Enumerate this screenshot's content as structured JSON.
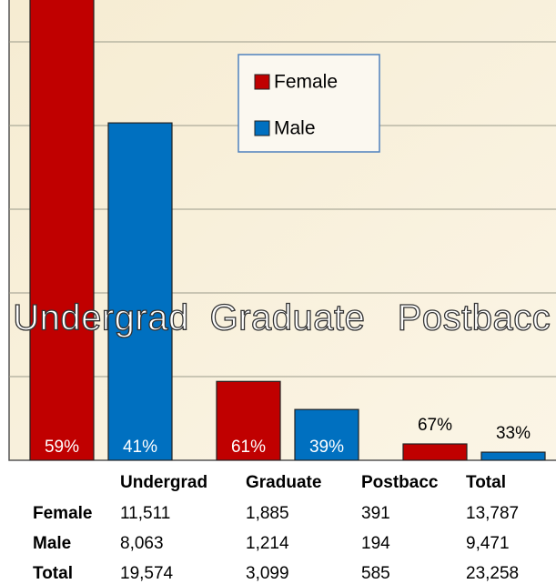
{
  "chart_data": {
    "type": "bar",
    "categories": [
      "Undergrad",
      "Graduate",
      "Postbacc"
    ],
    "series": [
      {
        "name": "Female",
        "color": "#c00000",
        "values": [
          11511,
          1885,
          391
        ],
        "percent_labels": [
          "59%",
          "61%",
          "67%"
        ]
      },
      {
        "name": "Male",
        "color": "#0070c0",
        "values": [
          8063,
          1214,
          194
        ],
        "percent_labels": [
          "41%",
          "39%",
          "33%"
        ]
      }
    ],
    "ylim": [
      0,
      11000
    ],
    "yticks": [
      2000,
      4000,
      6000,
      8000,
      10000
    ],
    "grid": true,
    "legend": "top-center"
  },
  "table": {
    "columns": [
      "Undergrad",
      "Graduate",
      "Postbacc",
      "Total"
    ],
    "rows": [
      {
        "name": "Female",
        "cells": [
          "11,511",
          "1,885",
          "391",
          "13,787"
        ]
      },
      {
        "name": "Male",
        "cells": [
          "8,063",
          "1,214",
          "194",
          "9,471"
        ]
      },
      {
        "name": "Total",
        "cells": [
          "19,574",
          "3,099",
          "585",
          "23,258"
        ]
      }
    ]
  }
}
